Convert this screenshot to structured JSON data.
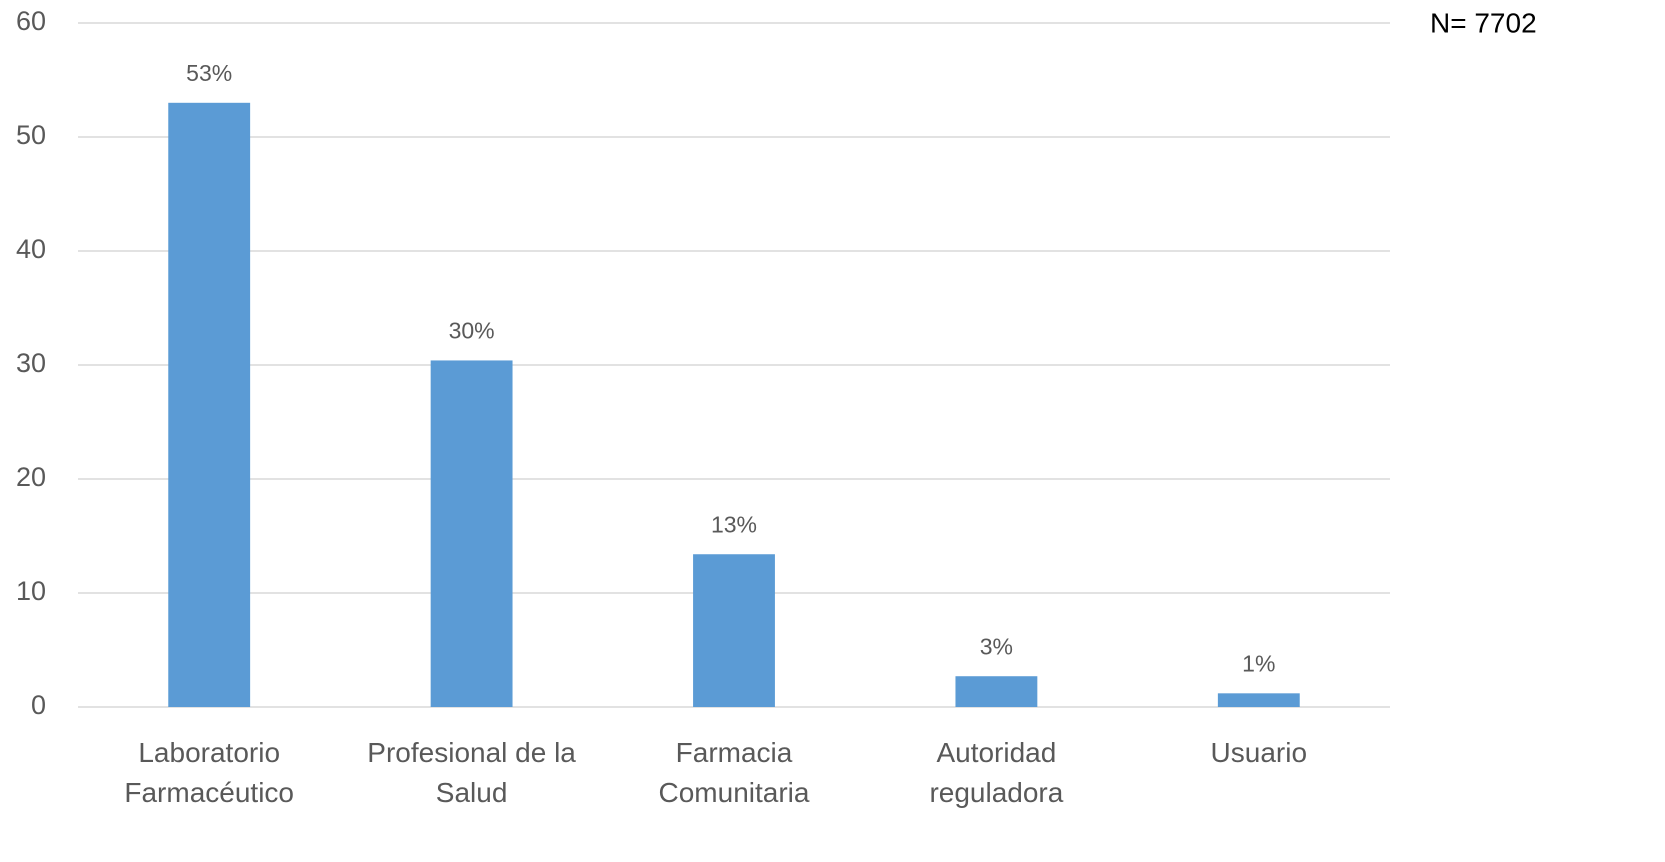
{
  "chart_data": {
    "type": "bar",
    "annotation": "N= 7702",
    "categories": [
      "Laboratorio Farmacéutico",
      "Profesional de la Salud",
      "Farmacia Comunitaria",
      "Autoridad reguladora",
      "Usuario"
    ],
    "values": [
      53,
      30.4,
      13.4,
      2.7,
      1.2
    ],
    "value_labels": [
      "53%",
      "30%",
      "13%",
      "3%",
      "1%"
    ],
    "color": "#5b9bd5",
    "ylim": [
      0,
      60
    ],
    "yticks": [
      0,
      10,
      20,
      30,
      40,
      50,
      60
    ],
    "grid": true
  }
}
